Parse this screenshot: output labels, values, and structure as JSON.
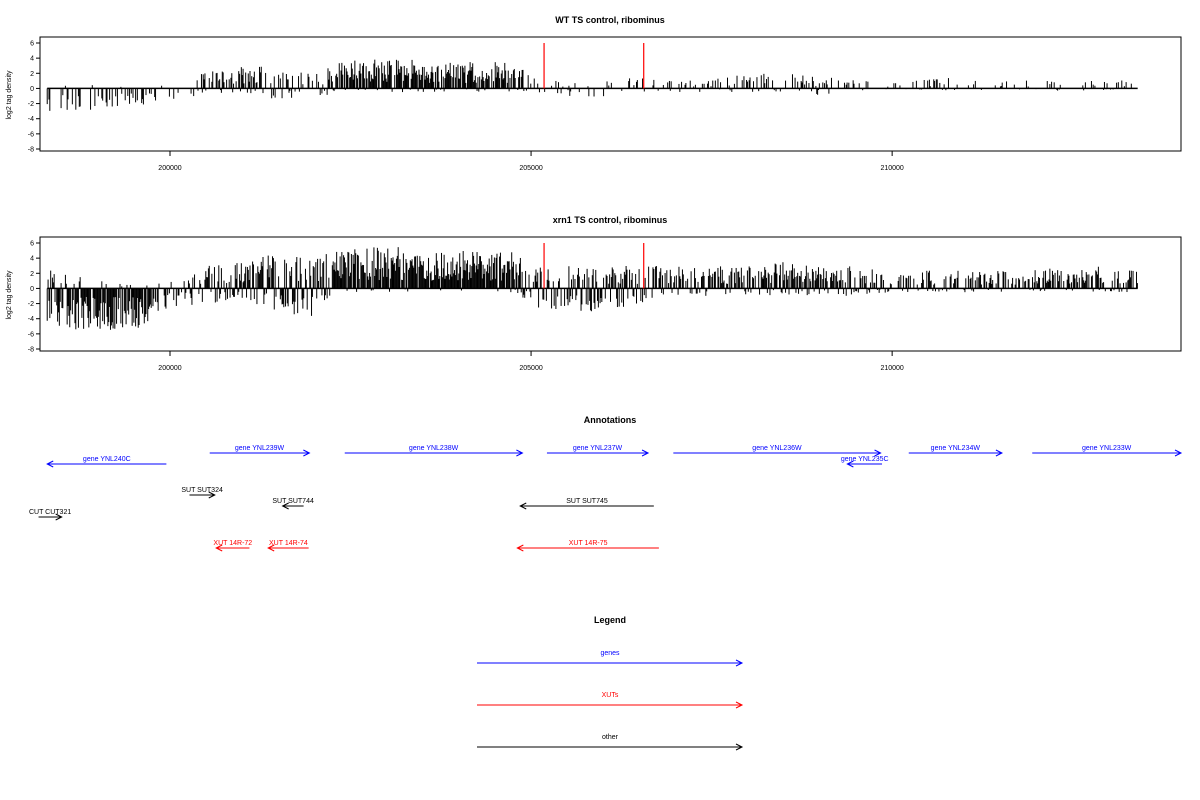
{
  "chart_data": [
    {
      "type": "bar",
      "title": "WT TS control, ribominus",
      "ylabel": "log2 tag density",
      "xlabel": "",
      "xlim": [
        198200,
        214000
      ],
      "ylim": [
        -8,
        6
      ],
      "yticks": [
        6,
        4,
        2,
        0,
        -2,
        -4,
        -6,
        -8
      ],
      "xticks": [
        200000,
        205000,
        210000
      ],
      "colors": {
        "bars": "#000000",
        "highlight": "#ff0000"
      },
      "profile": {
        "x": [
          198300,
          198800,
          199500,
          200100,
          200550,
          201000,
          201500,
          202000,
          202300,
          202700,
          203200,
          203800,
          204200,
          204800,
          205100,
          205500,
          206000,
          206500,
          207000,
          207500,
          208000,
          208500,
          209000,
          209500,
          210000,
          210500,
          211000,
          211500,
          212000,
          212500,
          213000,
          213400
        ],
        "hi": [
          0,
          1,
          1,
          1,
          2.5,
          3,
          3,
          2,
          3.5,
          4,
          4,
          3.5,
          3.5,
          3.5,
          1,
          1,
          1,
          1.5,
          1,
          1.2,
          2,
          2,
          1.5,
          1.5,
          1,
          1.2,
          1.5,
          1.2,
          1.2,
          1.2,
          1.2,
          1
        ],
        "lo": [
          -3,
          -3,
          -2.5,
          -1.5,
          -1,
          -1,
          -1.5,
          -1.5,
          -0.5,
          -0.5,
          -0.5,
          -0.5,
          -0.5,
          -0.5,
          -0.8,
          -1,
          -1.2,
          -0.5,
          -0.5,
          -0.5,
          -0.5,
          -0.8,
          -1,
          -0.5,
          -0.3,
          -0.3,
          -0.3,
          -0.3,
          -0.3,
          -0.3,
          -0.3,
          -0.3
        ],
        "density": [
          0.3,
          0.3,
          0.3,
          0.05,
          0.5,
          0.6,
          0.6,
          0.3,
          0.8,
          0.9,
          0.9,
          0.9,
          0.8,
          0.8,
          0.2,
          0.2,
          0.2,
          0.25,
          0.2,
          0.3,
          0.35,
          0.35,
          0.3,
          0.3,
          0.15,
          0.25,
          0.2,
          0.2,
          0.2,
          0.2,
          0.2,
          0.15
        ]
      },
      "highlights": [
        {
          "x": 205180,
          "y": 6
        },
        {
          "x": 206560,
          "y": 6
        }
      ]
    },
    {
      "type": "bar",
      "title": "xrn1 TS control, ribominus",
      "ylabel": "log2 tag density",
      "xlabel": "",
      "xlim": [
        198200,
        214000
      ],
      "ylim": [
        -8,
        6
      ],
      "yticks": [
        6,
        4,
        2,
        0,
        -2,
        -4,
        -6,
        -8
      ],
      "xticks": [
        200000,
        205000,
        210000
      ],
      "colors": {
        "bars": "#000000",
        "highlight": "#ff0000"
      },
      "profile": {
        "x": [
          198300,
          198800,
          199500,
          200100,
          200550,
          201000,
          201500,
          202000,
          202300,
          202700,
          203200,
          203800,
          204200,
          204800,
          205100,
          205500,
          206000,
          206500,
          207000,
          207500,
          208000,
          208500,
          209000,
          209500,
          210000,
          210500,
          211000,
          211500,
          212000,
          212500,
          213000,
          213400
        ],
        "hi": [
          2.5,
          1.5,
          0.5,
          1.5,
          3,
          4,
          4.5,
          4,
          5,
          5.5,
          5.5,
          5,
          5,
          5,
          3,
          3,
          3,
          3,
          3,
          3,
          3,
          3.5,
          3,
          3,
          2,
          2.5,
          2.5,
          2.5,
          2.5,
          3,
          3,
          2.5
        ],
        "lo": [
          -5.5,
          -5.5,
          -5.5,
          -2.5,
          -2,
          -1.5,
          -3,
          -4,
          -0.5,
          -0.5,
          -0.5,
          -0.5,
          -0.5,
          -0.5,
          -3,
          -3.5,
          -3,
          -2,
          -1,
          -1,
          -1,
          -1,
          -1,
          -1,
          -0.5,
          -0.5,
          -0.5,
          -0.5,
          -0.5,
          -0.5,
          -0.5,
          -0.5
        ],
        "density": [
          0.95,
          0.95,
          0.95,
          0.3,
          0.7,
          0.8,
          0.85,
          0.8,
          0.95,
          0.95,
          0.95,
          0.95,
          0.95,
          0.95,
          0.8,
          0.8,
          0.8,
          0.7,
          0.7,
          0.7,
          0.75,
          0.75,
          0.75,
          0.75,
          0.5,
          0.55,
          0.5,
          0.5,
          0.5,
          0.55,
          0.55,
          0.5
        ]
      },
      "highlights": [
        {
          "x": 205180,
          "y": 6
        },
        {
          "x": 206560,
          "y": 6
        }
      ]
    }
  ],
  "annotations": {
    "title": "Annotations",
    "colors": {
      "gene": "#0000ff",
      "xut": "#ff0000",
      "other": "#000000"
    },
    "features": [
      {
        "label": "gene YNL240C",
        "kind": "gene",
        "start": 198300,
        "end": 199950,
        "strand": "-",
        "row": 1
      },
      {
        "label": "gene YNL239W",
        "kind": "gene",
        "start": 200550,
        "end": 201930,
        "strand": "+",
        "row": 0
      },
      {
        "label": "gene YNL238W",
        "kind": "gene",
        "start": 202420,
        "end": 204880,
        "strand": "+",
        "row": 0
      },
      {
        "label": "gene YNL237W",
        "kind": "gene",
        "start": 205220,
        "end": 206620,
        "strand": "+",
        "row": 0
      },
      {
        "label": "gene YNL236W",
        "kind": "gene",
        "start": 206970,
        "end": 209840,
        "strand": "+",
        "row": 0
      },
      {
        "label": "gene YNL235C",
        "kind": "gene",
        "start": 209380,
        "end": 209860,
        "strand": "-",
        "row": 1
      },
      {
        "label": "gene YNL234W",
        "kind": "gene",
        "start": 210230,
        "end": 211520,
        "strand": "+",
        "row": 0
      },
      {
        "label": "gene YNL233W",
        "kind": "gene",
        "start": 211940,
        "end": 214000,
        "strand": "+",
        "row": 0
      },
      {
        "label": "SUT SUT324",
        "kind": "other",
        "start": 200270,
        "end": 200620,
        "strand": "+",
        "row": 2
      },
      {
        "label": "SUT SUT744",
        "kind": "other",
        "start": 201560,
        "end": 201850,
        "strand": "-",
        "row": 3
      },
      {
        "label": "SUT SUT745",
        "kind": "other",
        "start": 204850,
        "end": 206700,
        "strand": "-",
        "row": 3
      },
      {
        "label": "CUT CUT321",
        "kind": "other",
        "start": 198180,
        "end": 198500,
        "strand": "+",
        "row": 4
      },
      {
        "label": "XUT 14R-72",
        "kind": "xut",
        "start": 200640,
        "end": 201100,
        "strand": "-",
        "row": 5
      },
      {
        "label": "XUT 14R-74",
        "kind": "xut",
        "start": 201360,
        "end": 201920,
        "strand": "-",
        "row": 5
      },
      {
        "label": "XUT 14R-75",
        "kind": "xut",
        "start": 204810,
        "end": 206770,
        "strand": "-",
        "row": 5
      }
    ]
  },
  "legend": {
    "title": "Legend",
    "items": [
      {
        "label": "genes",
        "color": "#0000ff"
      },
      {
        "label": "XUTs",
        "color": "#ff0000"
      },
      {
        "label": "other",
        "color": "#000000"
      }
    ]
  }
}
